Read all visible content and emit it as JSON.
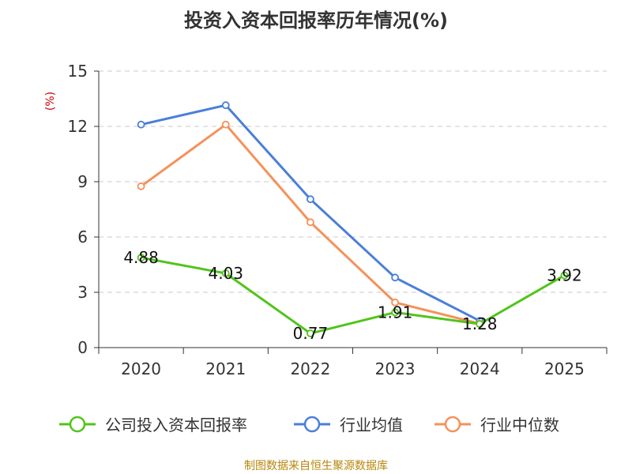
{
  "chart_data": {
    "type": "line",
    "title": "投资入资本回报率历年情况(%)",
    "ylabel": "(%)",
    "xlabel": "",
    "categories": [
      "2020",
      "2021",
      "2022",
      "2023",
      "2024",
      "2025"
    ],
    "ylim": [
      0,
      15
    ],
    "yticks": [
      0,
      3,
      6,
      9,
      12,
      15
    ],
    "grid": true,
    "legend_position": "bottom",
    "series": [
      {
        "name": "公司投入资本回报率",
        "color": "#52c41a",
        "values": [
          4.88,
          4.03,
          0.77,
          1.91,
          1.28,
          3.92
        ],
        "labels": [
          "4.88",
          "4.03",
          "0.77",
          "1.91",
          "1.28",
          "3.92"
        ]
      },
      {
        "name": "行业均值",
        "color": "#4a7fd9",
        "values": [
          12.1,
          13.15,
          8.05,
          3.8,
          1.45,
          null
        ]
      },
      {
        "name": "行业中位数",
        "color": "#f5915a",
        "values": [
          8.75,
          12.1,
          6.8,
          2.45,
          1.3,
          null
        ]
      }
    ]
  },
  "source_text": "制图数据来自恒生聚源数据库"
}
